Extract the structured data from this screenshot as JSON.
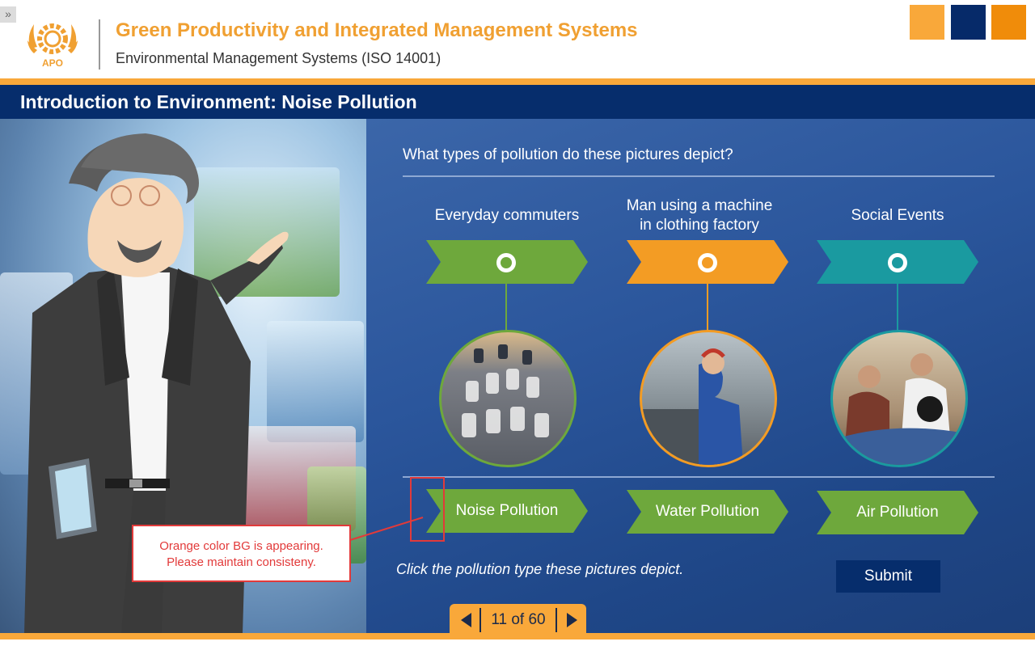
{
  "header": {
    "expander": "»",
    "title": "Green Productivity and Integrated Management Systems",
    "subtitle": "Environmental Management Systems (ISO 14001)",
    "logo_text": "APO",
    "colors": {
      "orange": "#f9a83a",
      "navy": "#062a69",
      "dark_orange": "#f08c0a"
    }
  },
  "topic": {
    "title": "Introduction to Environment: Noise Pollution"
  },
  "quiz": {
    "question": "What types of pollution do these pictures depict?",
    "pictures": [
      {
        "label": "Everyday commuters",
        "color": "#6ea83c",
        "image": "traffic-jam-image"
      },
      {
        "label_line1": "Man using a machine",
        "label_line2": "in clothing factory",
        "color": "#f39c24",
        "image": "factory-worker-image"
      },
      {
        "label": "Social Events",
        "color": "#1a9aa0",
        "image": "party-image"
      }
    ],
    "answers": [
      "Noise Pollution",
      "Water Pollution",
      "Air Pollution"
    ],
    "instruction": "Click the pollution type these pictures depict.",
    "submit_label": "Submit"
  },
  "navigation": {
    "page_indicator": "11 of 60"
  },
  "review_note": {
    "line1": "Orange color BG is appearing.",
    "line2": "Please maintain consisteny."
  }
}
